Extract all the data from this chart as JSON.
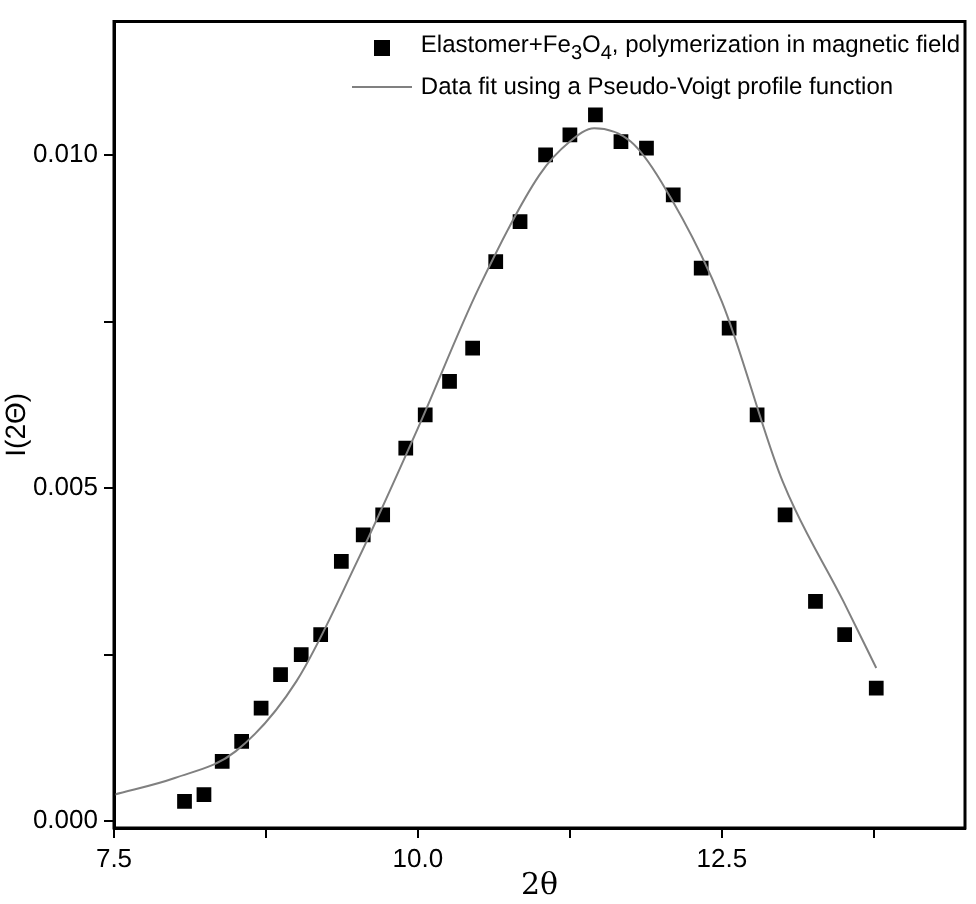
{
  "chart_data": {
    "type": "scatter",
    "xlabel": "2θ",
    "ylabel": "I(2Θ)",
    "xlim": [
      7.5,
      14.5
    ],
    "ylim": [
      -0.0001,
      0.012
    ],
    "xticks": [
      {
        "value": 7.5,
        "label": "7.5"
      },
      {
        "value": 8.75,
        "label": null
      },
      {
        "value": 10,
        "label": "10.0"
      },
      {
        "value": 11.25,
        "label": null
      },
      {
        "value": 12.5,
        "label": "12.5"
      },
      {
        "value": 13.75,
        "label": null
      }
    ],
    "yticks": [
      {
        "value": 0,
        "label": "0.000"
      },
      {
        "value": 0.0025,
        "label": null
      },
      {
        "value": 0.005,
        "label": "0.005"
      },
      {
        "value": 0.0075,
        "label": null
      },
      {
        "value": 0.01,
        "label": "0.010"
      }
    ],
    "grid": false,
    "legend": "top right",
    "marker": "square",
    "series": [
      {
        "name": "Elastomer+Fe$_{3}$O$_{4}$, polymerization in magnetic field",
        "color": "#000000",
        "x": [
          8.08,
          8.24,
          8.39,
          8.55,
          8.71,
          8.87,
          9.04,
          9.2,
          9.37,
          9.55,
          9.71,
          9.9,
          10.06,
          10.26,
          10.45,
          10.64,
          10.84,
          11.05,
          11.25,
          11.46,
          11.67,
          11.88,
          12.1,
          12.33,
          12.56,
          12.79,
          13.02,
          13.27,
          13.51,
          13.77
        ],
        "values": [
          0.0003,
          0.0004,
          0.0009,
          0.0012,
          0.0017,
          0.0022,
          0.0025,
          0.0028,
          0.0039,
          0.0043,
          0.0046,
          0.0056,
          0.0061,
          0.0066,
          0.0071,
          0.0084,
          0.009,
          0.01,
          0.0103,
          0.0106,
          0.0102,
          0.0101,
          0.0094,
          0.0083,
          0.0074,
          0.0061,
          0.0046,
          0.0033,
          0.0028,
          0.002
        ]
      },
      {
        "name": "Data fit using a Pseudo-Voigt profile function",
        "type": "line",
        "color": "#808080",
        "marker": "none",
        "line_style": "solid",
        "x": [
          7.5,
          8.0,
          8.5,
          9.0,
          9.5,
          10.0,
          10.5,
          11.0,
          11.25,
          11.45,
          11.75,
          12.0,
          12.5,
          13.0,
          13.5,
          13.77
        ],
        "values": [
          0.0004,
          0.00065,
          0.00105,
          0.0021,
          0.0039,
          0.0059,
          0.008,
          0.0097,
          0.0102,
          0.0104,
          0.0102,
          0.0096,
          0.0078,
          0.0051,
          0.0033,
          0.0023
        ]
      }
    ]
  }
}
